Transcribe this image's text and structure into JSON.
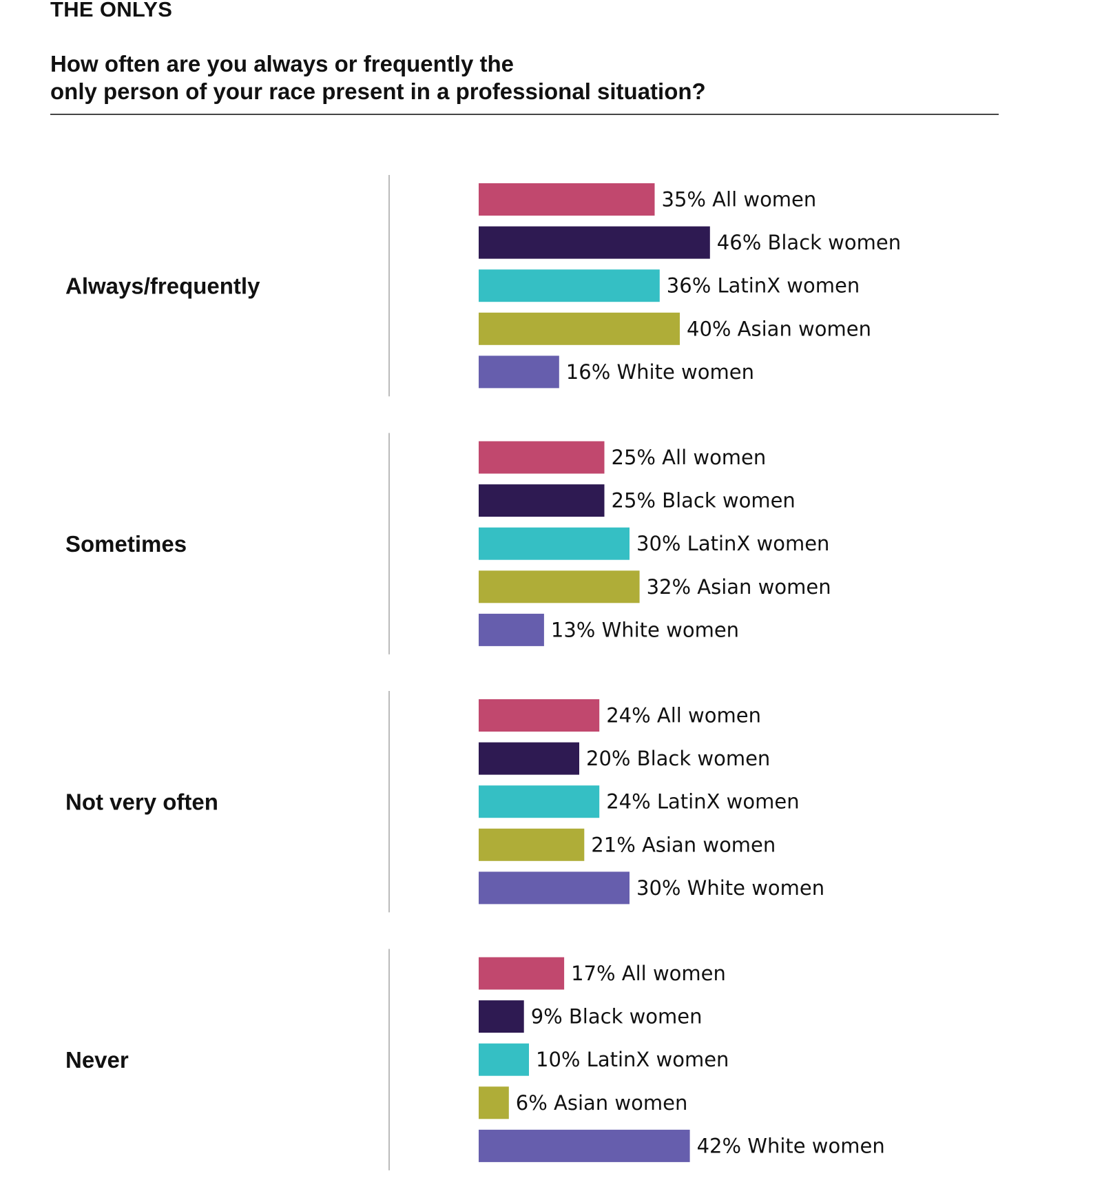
{
  "header": {
    "kicker": "THE ONLYS",
    "question_line1": "How often are you always or frequently the",
    "question_line2": "only person of your race present in a professional situation?"
  },
  "colors": {
    "All women": "#C1486E",
    "Black women": "#2E1A52",
    "LatinX women": "#35BFC4",
    "Asian women": "#AFAD38",
    "White women": "#665EAD",
    "divider": "#BBBBBB",
    "title_rule": "#444444"
  },
  "chart_data": {
    "type": "bar",
    "orientation": "horizontal",
    "unit": "%",
    "categories": [
      "Always/frequently",
      "Sometimes",
      "Not very often",
      "Never"
    ],
    "series": [
      {
        "name": "All women",
        "values": [
          35,
          25,
          24,
          17
        ]
      },
      {
        "name": "Black women",
        "values": [
          46,
          25,
          20,
          9
        ]
      },
      {
        "name": "LatinX women",
        "values": [
          36,
          30,
          24,
          10
        ]
      },
      {
        "name": "Asian women",
        "values": [
          40,
          32,
          21,
          6
        ]
      },
      {
        "name": "White women",
        "values": [
          16,
          13,
          30,
          42
        ]
      }
    ],
    "title": "How often are you always or frequently the only person of your race present in a professional situation?",
    "xlim": [
      0,
      100
    ],
    "grid": false,
    "legend": "none (labels next to bars)"
  }
}
